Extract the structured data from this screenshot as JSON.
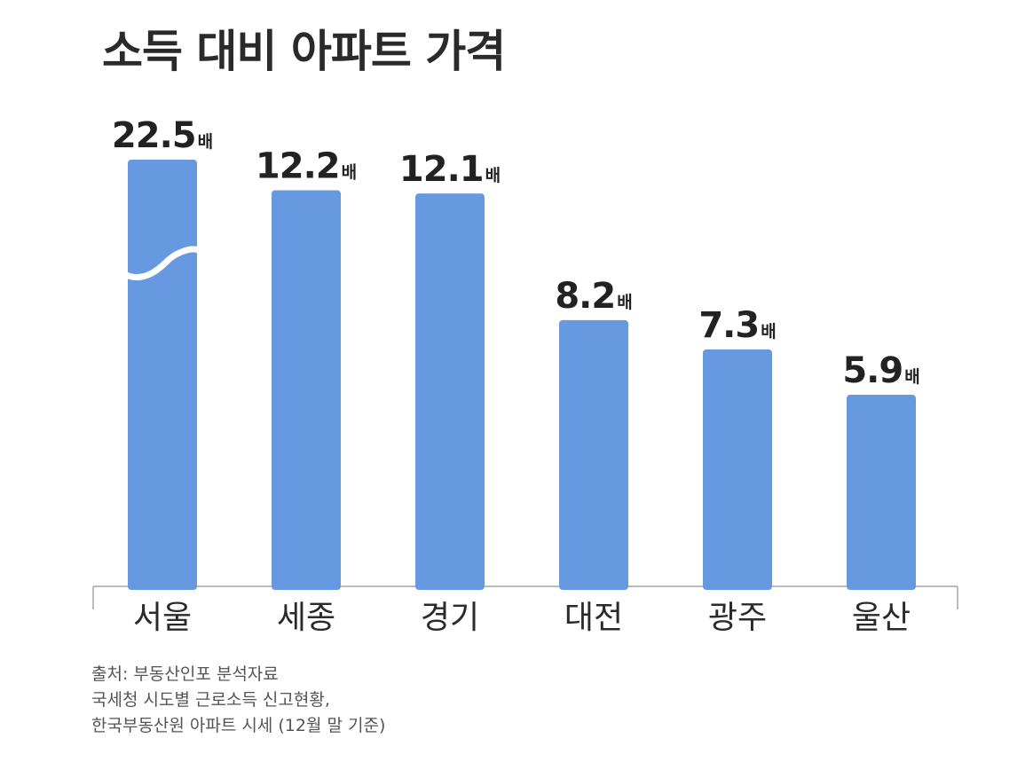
{
  "chart_data": {
    "type": "bar",
    "title": "소득 대비 아파트 가격",
    "categories": [
      "서울",
      "세종",
      "경기",
      "대전",
      "광주",
      "울산"
    ],
    "values": [
      22.5,
      12.2,
      12.1,
      8.2,
      7.3,
      5.9
    ],
    "value_labels": [
      "22.5",
      "12.2",
      "12.1",
      "8.2",
      "7.3",
      "5.9"
    ],
    "unit": "배",
    "axis_break": "서울",
    "grid": false,
    "legend": "none",
    "colors": {
      "bar": "#6699E0",
      "axis": "#bbbbbb",
      "text": "#222222"
    }
  },
  "source": {
    "lines": [
      "출처: 부동산인포 분석자료",
      "국세청 시도별 근로소득 신고현황,",
      "한국부동산원 아파트 시세 (12월 말 기준)"
    ]
  }
}
